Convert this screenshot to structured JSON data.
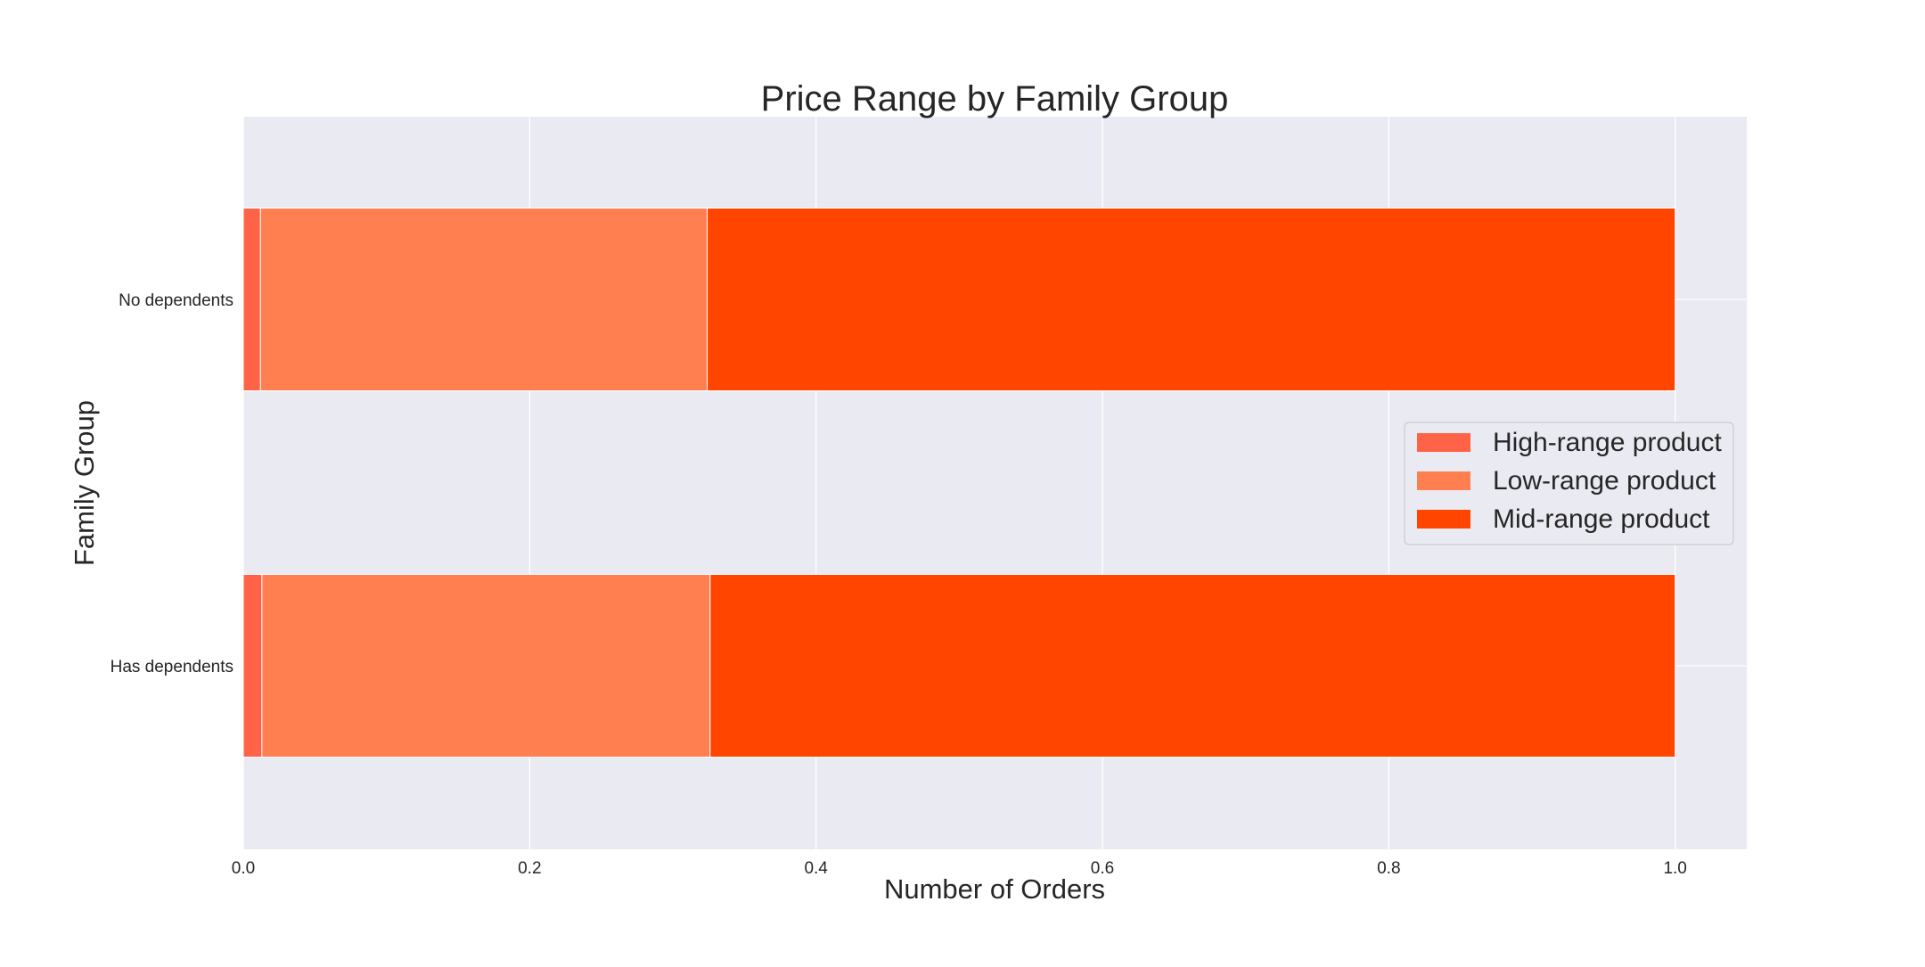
{
  "chart_data": {
    "type": "bar",
    "orientation": "horizontal",
    "stacked": true,
    "title": "Price Range by Family Group",
    "xlabel": "Number of Orders",
    "ylabel": "Family Group",
    "xlim": [
      0,
      1.05
    ],
    "xticks": [
      0.0,
      0.2,
      0.4,
      0.6,
      0.8,
      1.0
    ],
    "xtick_labels": [
      "0.0",
      "0.2",
      "0.4",
      "0.6",
      "0.8",
      "1.0"
    ],
    "categories": [
      "Has dependents",
      "No dependents"
    ],
    "series": [
      {
        "name": "High-range product",
        "color": "#FF6347",
        "values": [
          0.013,
          0.012
        ]
      },
      {
        "name": "Low-range product",
        "color": "#FF7F50",
        "values": [
          0.313,
          0.312
        ]
      },
      {
        "name": "Mid-range product",
        "color": "#FF4500",
        "values": [
          0.674,
          0.676
        ]
      }
    ],
    "grid": true,
    "legend_position": "right"
  }
}
